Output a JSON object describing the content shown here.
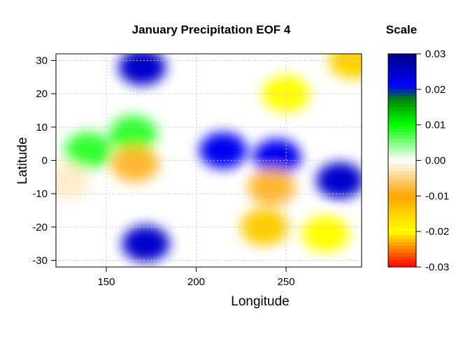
{
  "chart_data": {
    "type": "heatmap",
    "title": "January Precipitation EOF 4",
    "xlabel": "Longitude",
    "ylabel": "Latitude",
    "xlim": [
      122,
      292
    ],
    "ylim": [
      -32,
      32
    ],
    "x_ticks": [
      150,
      200,
      250
    ],
    "y_ticks": [
      30,
      20,
      10,
      0,
      -10,
      -20,
      -30
    ],
    "grid": true,
    "legend": {
      "title": "Scale",
      "range": [
        -0.03,
        0.03
      ],
      "ticks": [
        "0.03",
        "0.02",
        "0.01",
        "0.00",
        "-0.01",
        "-0.02",
        "-0.03"
      ],
      "placement": "right"
    },
    "colors": {
      "min": "#ff0000",
      "neg_mid": "#ffff00",
      "neg_low": "#ffa500",
      "near_zero": "#ffffff",
      "pos_low": "#00ff00",
      "pos_mid": "#008b00",
      "max": "#00008b",
      "blue": "#0000ff",
      "missing": "#ffffff"
    },
    "field_features": [
      {
        "lon": 170,
        "lat": 28,
        "value": 0.025
      },
      {
        "lon": 165,
        "lat": 8,
        "value": 0.008
      },
      {
        "lon": 140,
        "lat": 3,
        "value": 0.008
      },
      {
        "lon": 172,
        "lat": -25,
        "value": 0.025
      },
      {
        "lon": 215,
        "lat": 3,
        "value": 0.022
      },
      {
        "lon": 245,
        "lat": 1,
        "value": 0.022
      },
      {
        "lon": 280,
        "lat": -6,
        "value": 0.025
      },
      {
        "lon": 128,
        "lat": -6,
        "value": -0.002
      },
      {
        "lon": 166,
        "lat": -1,
        "value": -0.008
      },
      {
        "lon": 238,
        "lat": -20,
        "value": -0.022
      },
      {
        "lon": 242,
        "lat": -8,
        "value": -0.008
      },
      {
        "lon": 272,
        "lat": -22,
        "value": -0.02
      },
      {
        "lon": 250,
        "lat": 20,
        "value": -0.02
      },
      {
        "lon": 287,
        "lat": 30,
        "value": -0.015
      }
    ]
  }
}
